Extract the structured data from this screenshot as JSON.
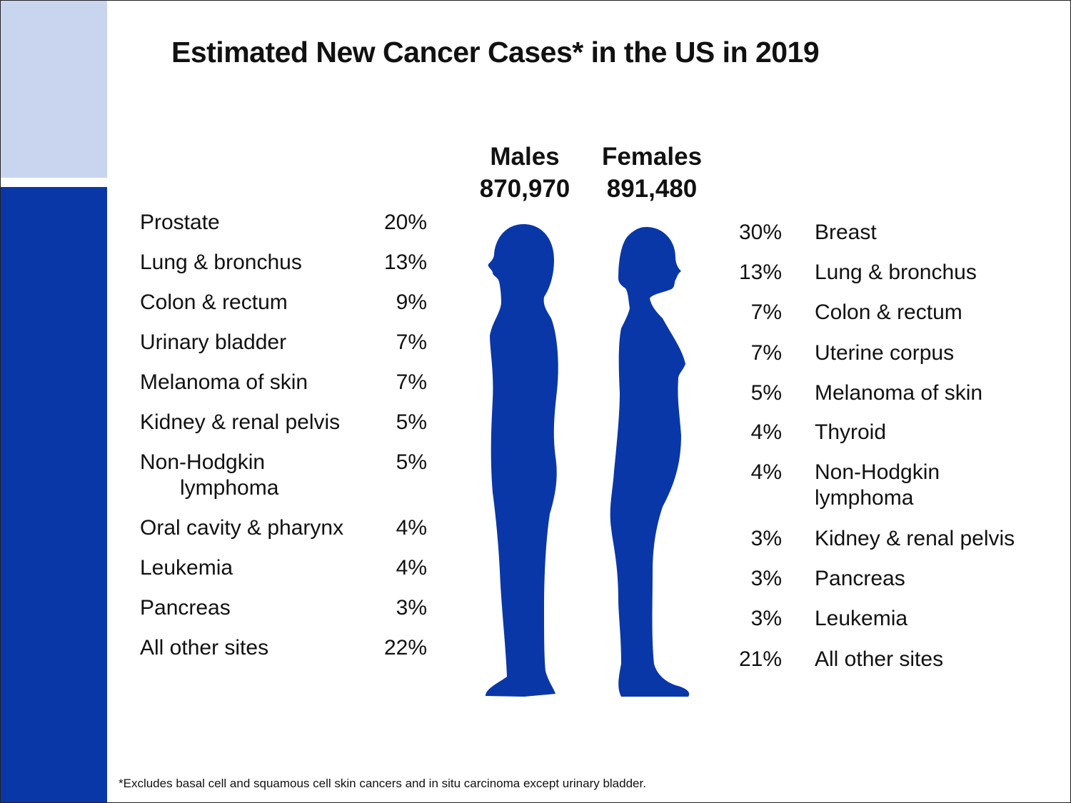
{
  "title": "Estimated New Cancer Cases* in the US in 2019",
  "males": {
    "heading": "Males",
    "total": "870,970",
    "sites": [
      {
        "label": "Prostate",
        "pct": "20%"
      },
      {
        "label": "Lung & bronchus",
        "pct": "13%"
      },
      {
        "label": "Colon & rectum",
        "pct": "9%"
      },
      {
        "label": "Urinary bladder",
        "pct": "7%"
      },
      {
        "label": "Melanoma of skin",
        "pct": "7%"
      },
      {
        "label": "Kidney & renal pelvis",
        "pct": "5%"
      },
      {
        "label": "Non-Hodgkin",
        "label2": "lymphoma",
        "pct": "5%"
      },
      {
        "label": "Oral cavity & pharynx",
        "pct": "4%"
      },
      {
        "label": "Leukemia",
        "pct": "4%"
      },
      {
        "label": "Pancreas",
        "pct": "3%"
      },
      {
        "label": "All other sites",
        "pct": "22%"
      }
    ]
  },
  "females": {
    "heading": "Females",
    "total": "891,480",
    "sites": [
      {
        "label": "Breast",
        "pct": "30%"
      },
      {
        "label": "Lung & bronchus",
        "pct": "13%"
      },
      {
        "label": "Colon & rectum",
        "pct": "7%"
      },
      {
        "label": "Uterine corpus",
        "pct": "7%"
      },
      {
        "label": "Melanoma of skin",
        "pct": "5%"
      },
      {
        "label": "Thyroid",
        "pct": "4%"
      },
      {
        "label": "Non-Hodgkin",
        "label2": "lymphoma",
        "pct": "4%"
      },
      {
        "label": "Kidney & renal pelvis",
        "pct": "3%"
      },
      {
        "label": "Pancreas",
        "pct": "3%"
      },
      {
        "label": "Leukemia",
        "pct": "3%"
      },
      {
        "label": "All other sites",
        "pct": "21%"
      }
    ]
  },
  "footnote": "*Excludes basal cell and squamous cell skin cancers and in situ carcinoma except urinary bladder.",
  "colors": {
    "accent": "#0a37a8",
    "accent_light": "#c9d5ef"
  }
}
